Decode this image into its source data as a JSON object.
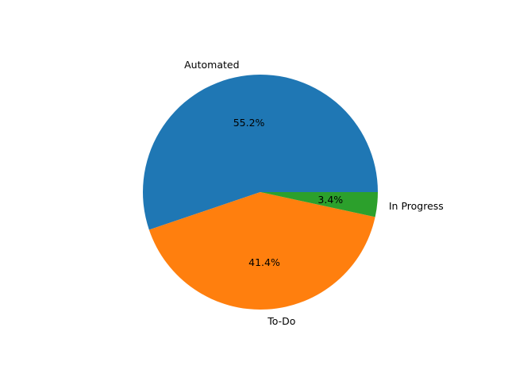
{
  "chart_data": {
    "type": "pie",
    "title": "",
    "slices": [
      {
        "label": "Automated",
        "value": 55.2,
        "pct_label": "55.2%",
        "color": "#1f77b4"
      },
      {
        "label": "To-Do",
        "value": 41.4,
        "pct_label": "41.4%",
        "color": "#ff7f0e"
      },
      {
        "label": "In Progress",
        "value": 3.4,
        "pct_label": "3.4%",
        "color": "#2ca02c"
      }
    ],
    "start_angle_deg": 0,
    "direction": "counterclockwise",
    "legend": "none"
  }
}
